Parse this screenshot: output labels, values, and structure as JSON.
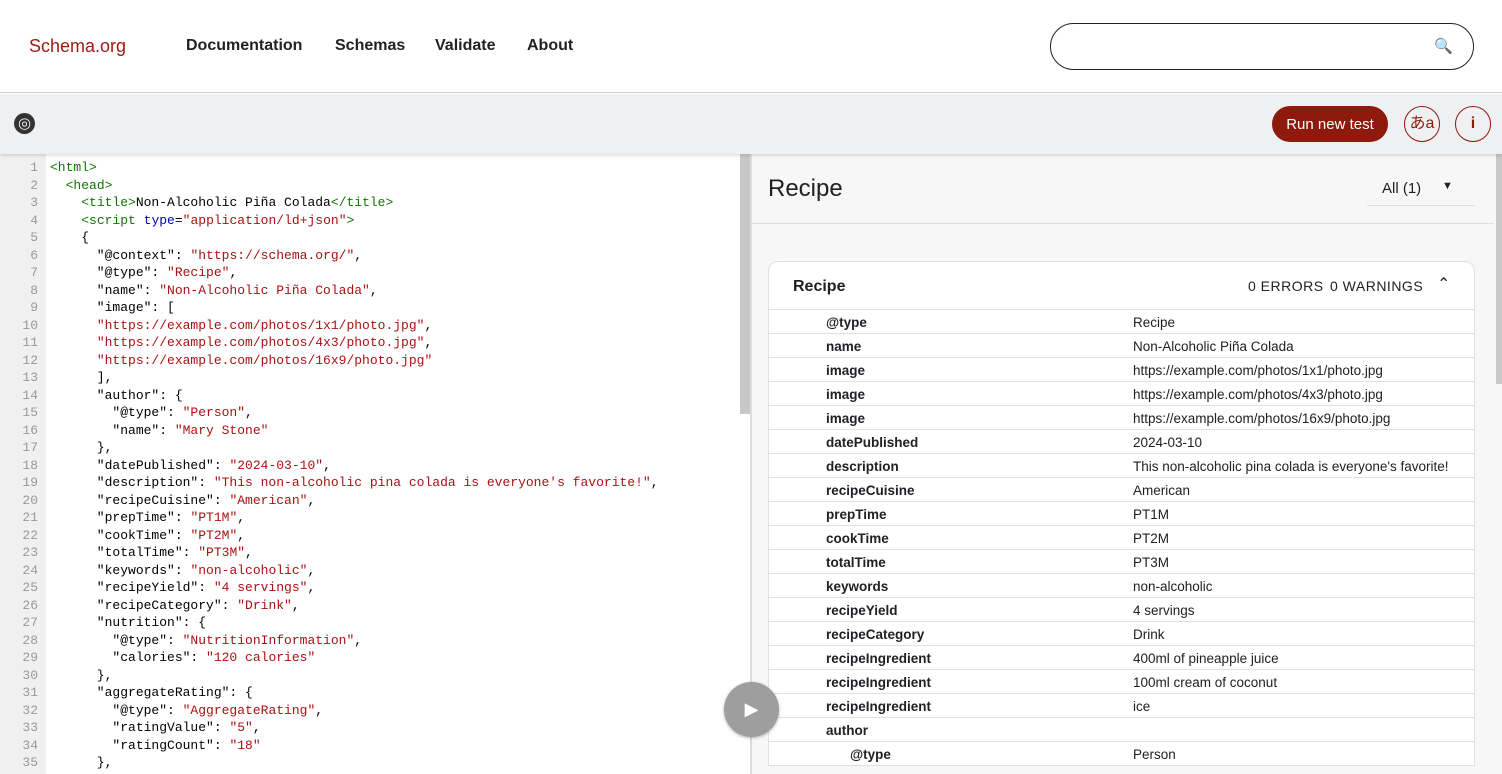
{
  "nav": {
    "logo": "Schema.org",
    "links": [
      "Documentation",
      "Schemas",
      "Validate",
      "About"
    ],
    "search_placeholder": ""
  },
  "toolbar": {
    "run_label": "Run new test",
    "lang_label": "あa",
    "info_label": "i"
  },
  "editor": {
    "lines": [
      [
        [
          "tag",
          "<html>"
        ]
      ],
      [
        [
          "plain",
          "  "
        ],
        [
          "tag",
          "<head>"
        ]
      ],
      [
        [
          "plain",
          "    "
        ],
        [
          "tag",
          "<title>"
        ],
        [
          "plain",
          "Non-Alcoholic Piña Colada"
        ],
        [
          "tag",
          "</title>"
        ]
      ],
      [
        [
          "plain",
          "    "
        ],
        [
          "tag",
          "<script "
        ],
        [
          "attr",
          "type"
        ],
        [
          "plain",
          "="
        ],
        [
          "str",
          "\"application/ld+json\""
        ],
        [
          "tag",
          ">"
        ]
      ],
      [
        [
          "plain",
          "    {"
        ]
      ],
      [
        [
          "plain",
          "      \"@context\": "
        ],
        [
          "str",
          "\"https://schema.org/\""
        ],
        [
          "plain",
          ","
        ]
      ],
      [
        [
          "plain",
          "      \"@type\": "
        ],
        [
          "str",
          "\"Recipe\""
        ],
        [
          "plain",
          ","
        ]
      ],
      [
        [
          "plain",
          "      \"name\": "
        ],
        [
          "str",
          "\"Non-Alcoholic Piña Colada\""
        ],
        [
          "plain",
          ","
        ]
      ],
      [
        [
          "plain",
          "      \"image\": ["
        ]
      ],
      [
        [
          "plain",
          "      "
        ],
        [
          "str",
          "\"https://example.com/photos/1x1/photo.jpg\""
        ],
        [
          "plain",
          ","
        ]
      ],
      [
        [
          "plain",
          "      "
        ],
        [
          "str",
          "\"https://example.com/photos/4x3/photo.jpg\""
        ],
        [
          "plain",
          ","
        ]
      ],
      [
        [
          "plain",
          "      "
        ],
        [
          "str",
          "\"https://example.com/photos/16x9/photo.jpg\""
        ]
      ],
      [
        [
          "plain",
          "      ],"
        ]
      ],
      [
        [
          "plain",
          "      \"author\": {"
        ]
      ],
      [
        [
          "plain",
          "        \"@type\": "
        ],
        [
          "str",
          "\"Person\""
        ],
        [
          "plain",
          ","
        ]
      ],
      [
        [
          "plain",
          "        \"name\": "
        ],
        [
          "str",
          "\"Mary Stone\""
        ]
      ],
      [
        [
          "plain",
          "      },"
        ]
      ],
      [
        [
          "plain",
          "      \"datePublished\": "
        ],
        [
          "str",
          "\"2024-03-10\""
        ],
        [
          "plain",
          ","
        ]
      ],
      [
        [
          "plain",
          "      \"description\": "
        ],
        [
          "str",
          "\"This non-alcoholic pina colada is everyone's favorite!\""
        ],
        [
          "plain",
          ","
        ]
      ],
      [
        [
          "plain",
          "      \"recipeCuisine\": "
        ],
        [
          "str",
          "\"American\""
        ],
        [
          "plain",
          ","
        ]
      ],
      [
        [
          "plain",
          "      \"prepTime\": "
        ],
        [
          "str",
          "\"PT1M\""
        ],
        [
          "plain",
          ","
        ]
      ],
      [
        [
          "plain",
          "      \"cookTime\": "
        ],
        [
          "str",
          "\"PT2M\""
        ],
        [
          "plain",
          ","
        ]
      ],
      [
        [
          "plain",
          "      \"totalTime\": "
        ],
        [
          "str",
          "\"PT3M\""
        ],
        [
          "plain",
          ","
        ]
      ],
      [
        [
          "plain",
          "      \"keywords\": "
        ],
        [
          "str",
          "\"non-alcoholic\""
        ],
        [
          "plain",
          ","
        ]
      ],
      [
        [
          "plain",
          "      \"recipeYield\": "
        ],
        [
          "str",
          "\"4 servings\""
        ],
        [
          "plain",
          ","
        ]
      ],
      [
        [
          "plain",
          "      \"recipeCategory\": "
        ],
        [
          "str",
          "\"Drink\""
        ],
        [
          "plain",
          ","
        ]
      ],
      [
        [
          "plain",
          "      \"nutrition\": {"
        ]
      ],
      [
        [
          "plain",
          "        \"@type\": "
        ],
        [
          "str",
          "\"NutritionInformation\""
        ],
        [
          "plain",
          ","
        ]
      ],
      [
        [
          "plain",
          "        \"calories\": "
        ],
        [
          "str",
          "\"120 calories\""
        ]
      ],
      [
        [
          "plain",
          "      },"
        ]
      ],
      [
        [
          "plain",
          "      \"aggregateRating\": {"
        ]
      ],
      [
        [
          "plain",
          "        \"@type\": "
        ],
        [
          "str",
          "\"AggregateRating\""
        ],
        [
          "plain",
          ","
        ]
      ],
      [
        [
          "plain",
          "        \"ratingValue\": "
        ],
        [
          "str",
          "\"5\""
        ],
        [
          "plain",
          ","
        ]
      ],
      [
        [
          "plain",
          "        \"ratingCount\": "
        ],
        [
          "str",
          "\"18\""
        ]
      ],
      [
        [
          "plain",
          "      },"
        ]
      ]
    ]
  },
  "results": {
    "title": "Recipe",
    "filter": "All (1)",
    "card": {
      "title": "Recipe",
      "errors": "0 ERRORS",
      "warnings": "0 WARNINGS",
      "rows": [
        {
          "k": "@type",
          "v": "Recipe"
        },
        {
          "k": "name",
          "v": "Non-Alcoholic Piña Colada"
        },
        {
          "k": "image",
          "v": "https://example.com/photos/1x1/photo.jpg"
        },
        {
          "k": "image",
          "v": "https://example.com/photos/4x3/photo.jpg"
        },
        {
          "k": "image",
          "v": "https://example.com/photos/16x9/photo.jpg"
        },
        {
          "k": "datePublished",
          "v": "2024-03-10"
        },
        {
          "k": "description",
          "v": "This non-alcoholic pina colada is everyone's favorite!"
        },
        {
          "k": "recipeCuisine",
          "v": "American"
        },
        {
          "k": "prepTime",
          "v": "PT1M"
        },
        {
          "k": "cookTime",
          "v": "PT2M"
        },
        {
          "k": "totalTime",
          "v": "PT3M"
        },
        {
          "k": "keywords",
          "v": "non-alcoholic"
        },
        {
          "k": "recipeYield",
          "v": "4 servings"
        },
        {
          "k": "recipeCategory",
          "v": "Drink"
        },
        {
          "k": "recipeIngredient",
          "v": "400ml of pineapple juice"
        },
        {
          "k": "recipeIngredient",
          "v": "100ml cream of coconut"
        },
        {
          "k": "recipeIngredient",
          "v": "ice"
        },
        {
          "k": "author",
          "v": ""
        },
        {
          "k": "@type",
          "v": "Person",
          "sub": true
        }
      ]
    }
  },
  "colors": {
    "brand": "#8e1a0e",
    "tag": "#117700",
    "attr": "#0000cc",
    "string": "#aa1111"
  }
}
